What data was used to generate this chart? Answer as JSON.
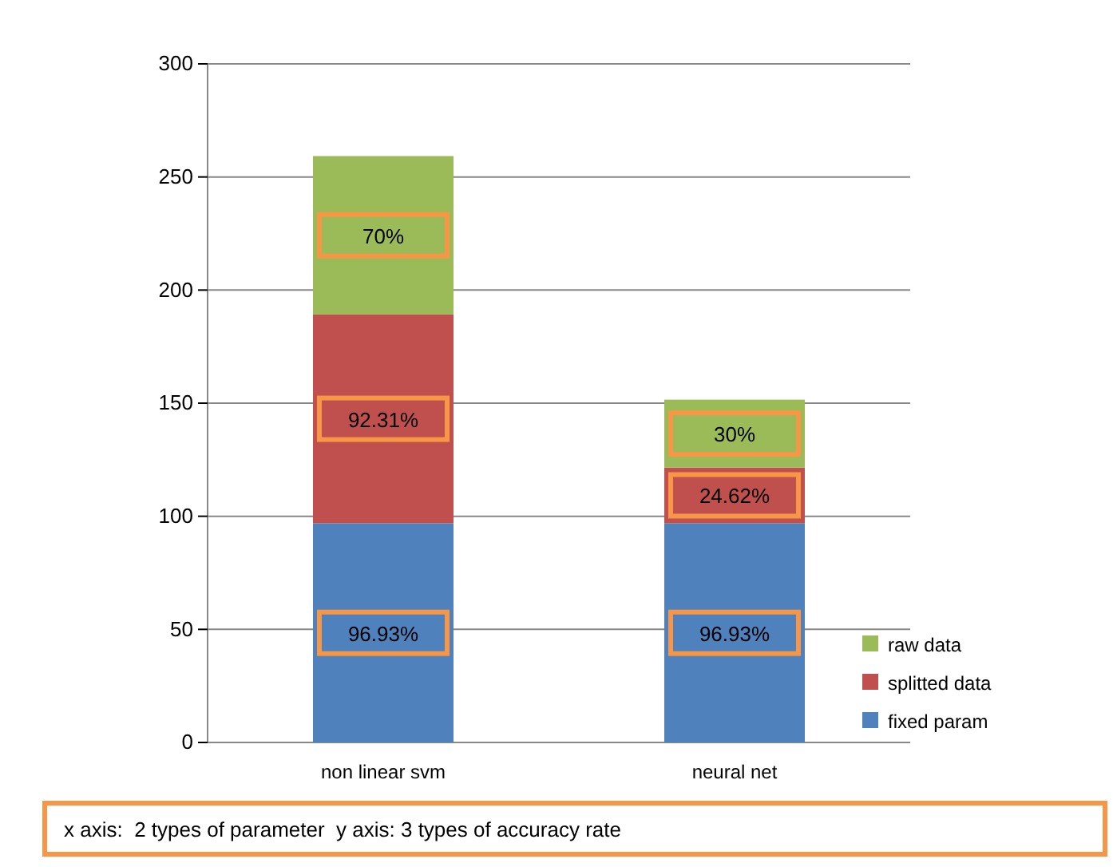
{
  "chart_data": {
    "type": "bar",
    "stacked": true,
    "categories": [
      "non linear svm",
      "neural net"
    ],
    "series": [
      {
        "name": "fixed param",
        "color": "#4f81bd",
        "values": [
          96.93,
          96.93
        ],
        "value_labels": [
          "96.93%",
          "96.93%"
        ]
      },
      {
        "name": "splitted data",
        "color": "#c0504d",
        "values": [
          92.31,
          24.62
        ],
        "value_labels": [
          "92.31%",
          "24.62%"
        ]
      },
      {
        "name": "raw data",
        "color": "#9bbb59",
        "values": [
          70,
          30
        ],
        "value_labels": [
          "70%",
          "30%"
        ]
      }
    ],
    "ylim": [
      0,
      300
    ],
    "yticks": [
      0,
      50,
      100,
      150,
      200,
      250,
      300
    ],
    "grid": "y",
    "legend": "right",
    "annotations": [
      "x axis:  2 types of parameter  y axis: 3 types of accuracy rate"
    ]
  }
}
